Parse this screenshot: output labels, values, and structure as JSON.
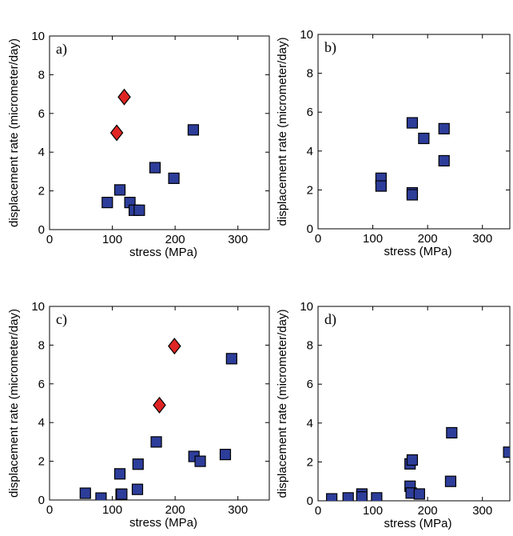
{
  "chart_data": [
    {
      "type": "scatter",
      "panel_label": "a)",
      "xlabel": "stress (MPa)",
      "ylabel": "displacement rate (micrometer/day)",
      "xlim": [
        0,
        350
      ],
      "ylim": [
        0,
        10
      ],
      "xticks": [
        0,
        100,
        200,
        300
      ],
      "yticks": [
        0,
        2,
        4,
        6,
        8,
        10
      ],
      "grid": false,
      "series": [
        {
          "marker": "square",
          "color": "#2d3d9a",
          "x": [
            92,
            112,
            128,
            135,
            143,
            168,
            198,
            229
          ],
          "y": [
            1.4,
            2.05,
            1.4,
            1.0,
            1.0,
            3.2,
            2.65,
            5.15
          ]
        },
        {
          "marker": "diamond",
          "color": "#e02424",
          "x": [
            107,
            119
          ],
          "y": [
            5.0,
            6.85
          ]
        }
      ]
    },
    {
      "type": "scatter",
      "panel_label": "b)",
      "xlabel": "stress (MPa)",
      "ylabel": "displacement rate (micrometer/day)",
      "xlim": [
        0,
        350
      ],
      "ylim": [
        0,
        10
      ],
      "xticks": [
        0,
        100,
        200,
        300
      ],
      "yticks": [
        0,
        2,
        4,
        6,
        8,
        10
      ],
      "grid": false,
      "series": [
        {
          "marker": "square",
          "color": "#2d3d9a",
          "x": [
            115,
            115,
            172,
            172,
            172,
            193,
            230,
            230
          ],
          "y": [
            2.6,
            2.2,
            5.45,
            1.85,
            1.75,
            4.65,
            5.15,
            3.5
          ]
        }
      ]
    },
    {
      "type": "scatter",
      "panel_label": "c)",
      "xlabel": "stress (MPa)",
      "ylabel": "displacement rate (micrometer/day)",
      "xlim": [
        0,
        350
      ],
      "ylim": [
        0,
        10
      ],
      "xticks": [
        0,
        100,
        200,
        300
      ],
      "yticks": [
        0,
        2,
        4,
        6,
        8,
        10
      ],
      "grid": false,
      "series": [
        {
          "marker": "square",
          "color": "#2d3d9a",
          "x": [
            57,
            82,
            112,
            114,
            115,
            140,
            141,
            170,
            230,
            240,
            280,
            290
          ],
          "y": [
            0.35,
            0.1,
            1.35,
            0.3,
            0.3,
            0.55,
            1.85,
            3.0,
            2.25,
            2.0,
            2.35,
            7.3
          ]
        },
        {
          "marker": "diamond",
          "color": "#e02424",
          "x": [
            175,
            199
          ],
          "y": [
            4.9,
            7.95
          ]
        }
      ]
    },
    {
      "type": "scatter",
      "panel_label": "d)",
      "xlabel": "stress (MPa)",
      "ylabel": "displacement rate (micrometer/day)",
      "xlim": [
        0,
        350
      ],
      "ylim": [
        0,
        10
      ],
      "xticks": [
        0,
        100,
        200,
        300
      ],
      "yticks": [
        0,
        2,
        4,
        6,
        8,
        10
      ],
      "grid": false,
      "series": [
        {
          "marker": "square",
          "color": "#2d3d9a",
          "x": [
            25,
            55,
            80,
            80,
            107,
            168,
            168,
            170,
            172,
            185,
            242,
            244,
            348
          ],
          "y": [
            0.1,
            0.15,
            0.35,
            0.2,
            0.15,
            1.9,
            0.75,
            0.4,
            2.1,
            0.35,
            1.0,
            3.5,
            2.5
          ]
        }
      ]
    }
  ]
}
